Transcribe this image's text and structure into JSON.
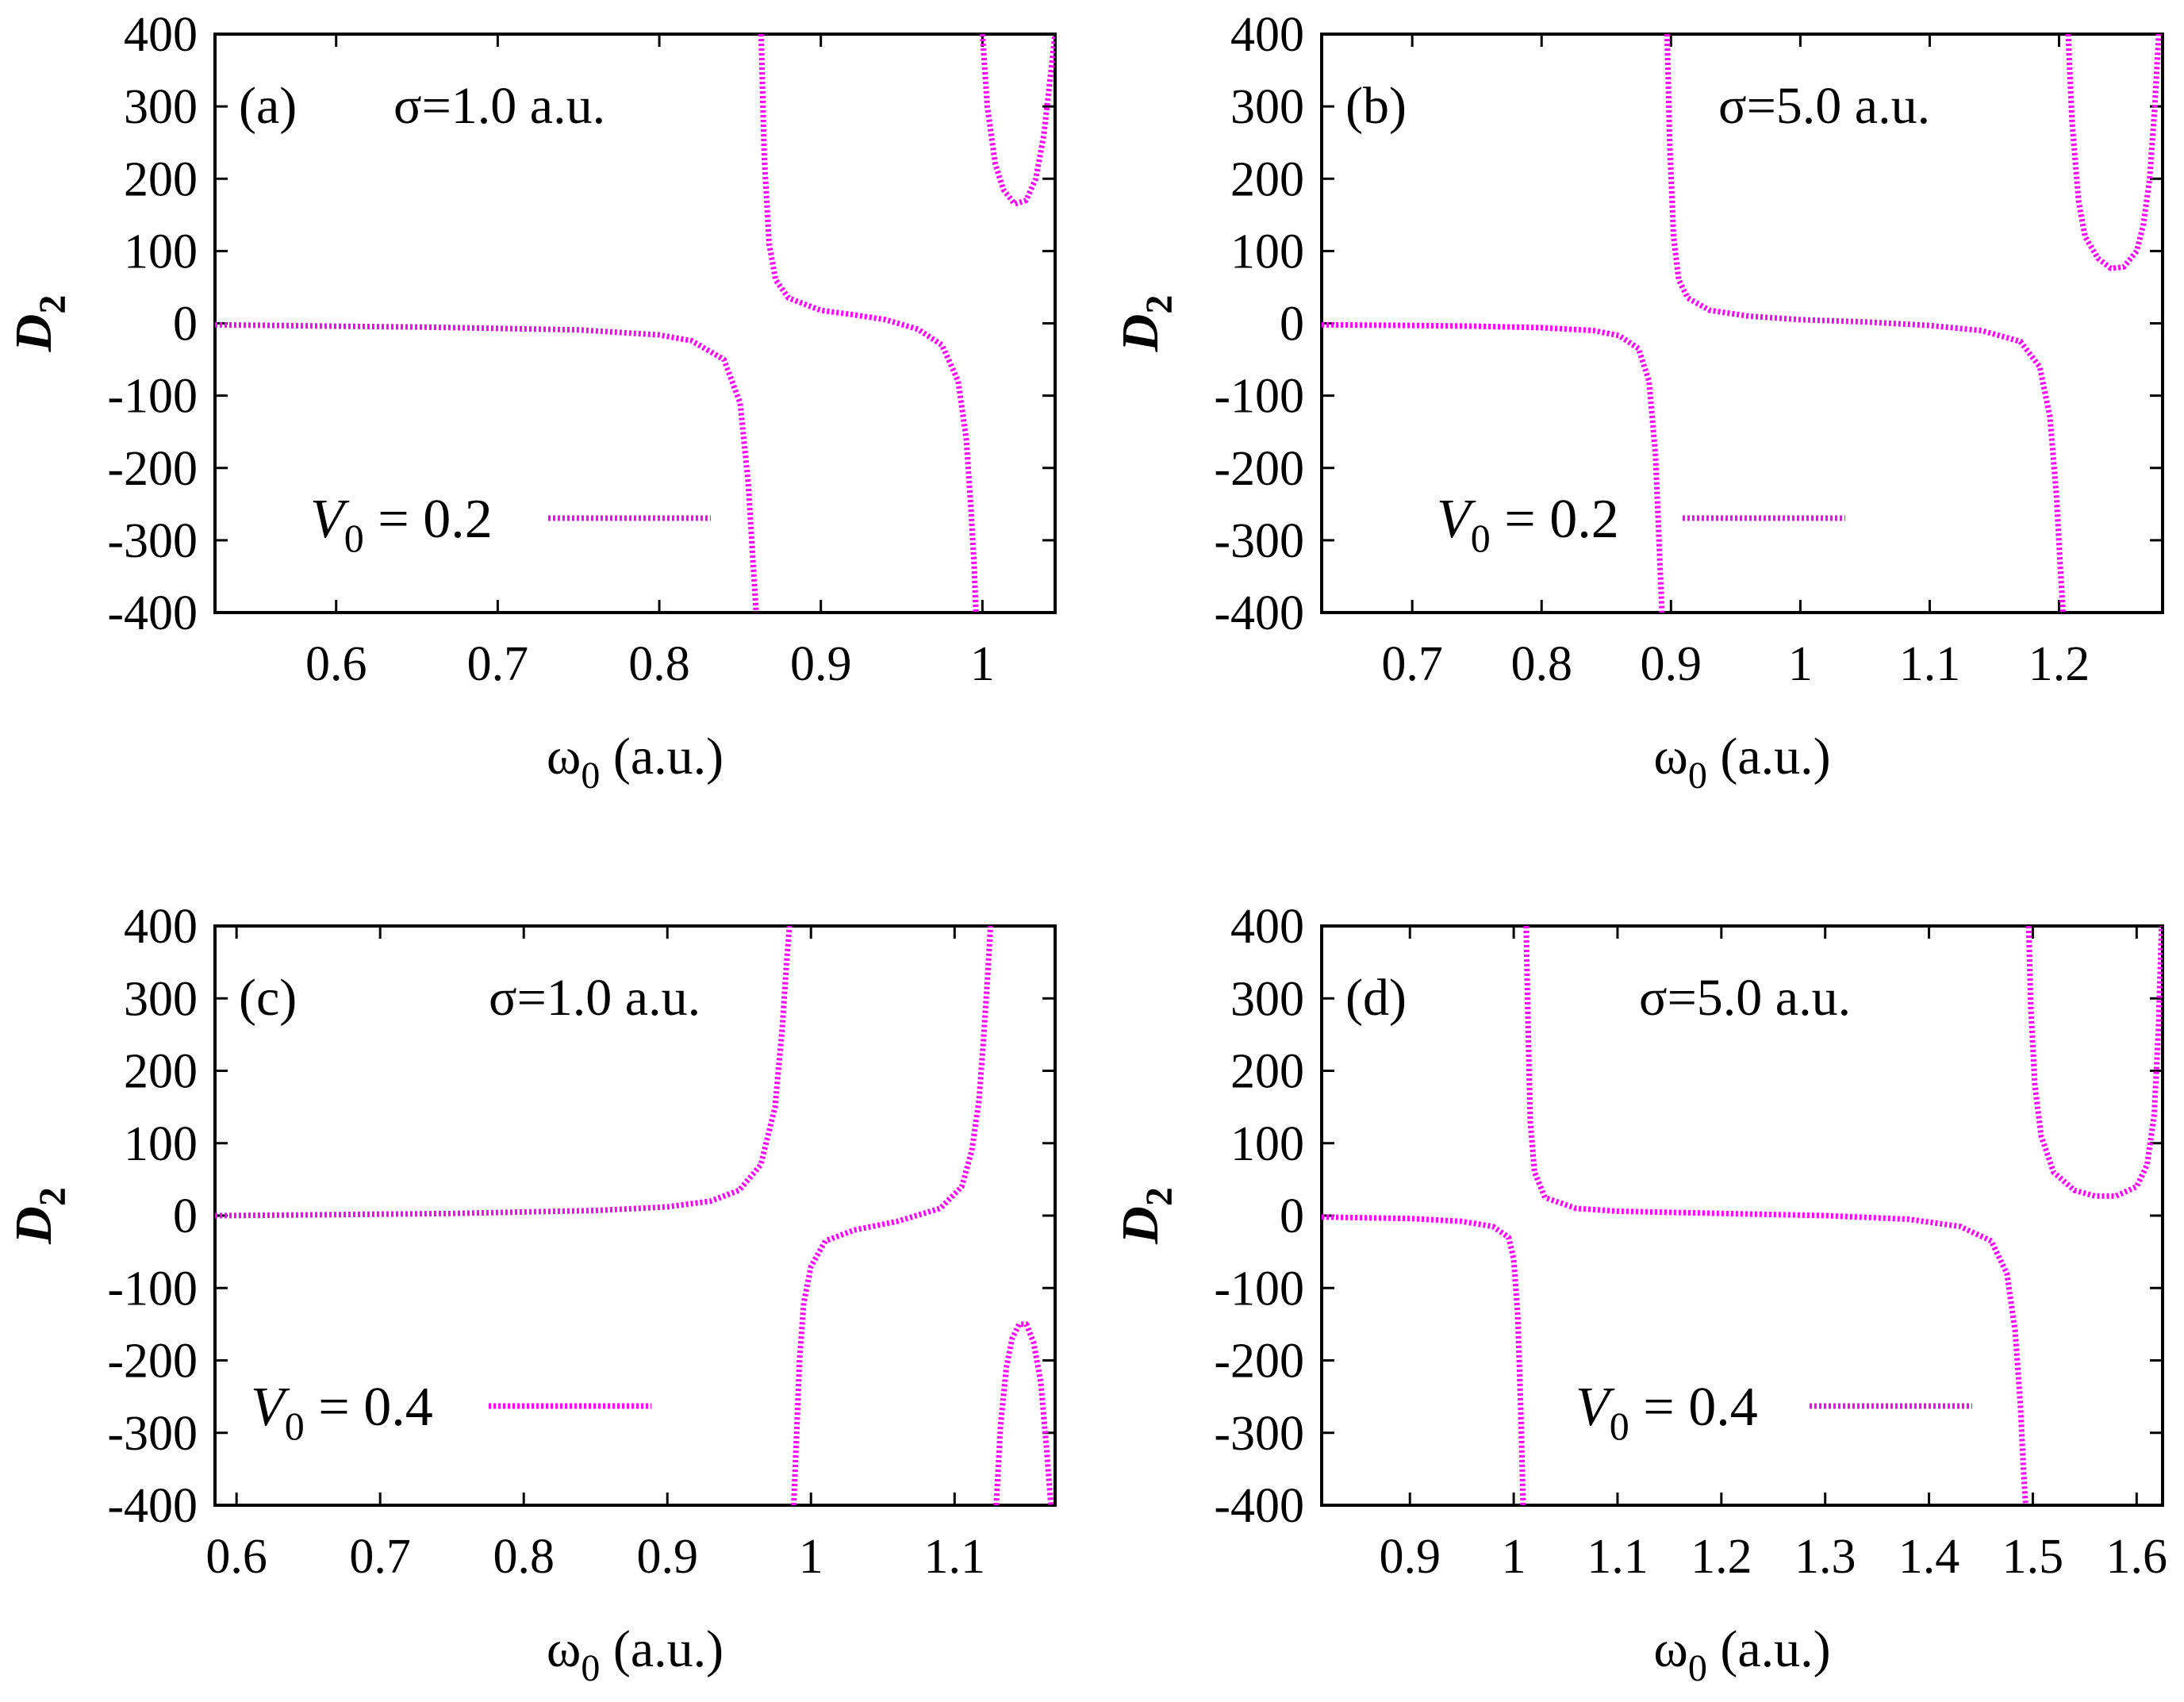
{
  "figure": {
    "ylabel": "D",
    "ylabel_sub": "2",
    "xlabel_symbol": "ω",
    "xlabel_sub": "0",
    "xlabel_unit": " (a.u.)",
    "legend_prefix": "V",
    "legend_sub": "0",
    "curve_color": "#ff00ff"
  },
  "chart_data": [
    {
      "type": "line",
      "panel": "(a)",
      "annotation": "σ=1.0 a.u.",
      "legend": " = 0.2",
      "xlim": [
        0.525,
        1.045
      ],
      "ylim": [
        -400,
        400
      ],
      "xticks": [
        0.6,
        0.7,
        0.8,
        0.9,
        1
      ],
      "xtick_labels": [
        "0.6",
        "0.7",
        "0.8",
        "0.9",
        "1"
      ],
      "yticks": [
        -400,
        -300,
        -200,
        -100,
        0,
        100,
        200,
        300,
        400
      ],
      "ytick_labels": [
        "-400",
        "-300",
        "-200",
        "-100",
        "0",
        "100",
        "200",
        "300",
        "400"
      ],
      "poles": [
        0.862,
        0.997
      ],
      "branches": [
        {
          "x": [
            0.525,
            0.6,
            0.65,
            0.7,
            0.75,
            0.8,
            0.82,
            0.84,
            0.85,
            0.855,
            0.858,
            0.86
          ],
          "y": [
            -2,
            -4,
            -5,
            -7,
            -9,
            -16,
            -24,
            -50,
            -110,
            -220,
            -330,
            -400
          ]
        },
        {
          "x": [
            0.863,
            0.865,
            0.868,
            0.872,
            0.88,
            0.9,
            0.92,
            0.94,
            0.96,
            0.975,
            0.985,
            0.99,
            0.993,
            0.995,
            0.996
          ],
          "y": [
            400,
            230,
            110,
            60,
            35,
            18,
            12,
            5,
            -8,
            -30,
            -80,
            -160,
            -260,
            -340,
            -400
          ]
        },
        {
          "x": [
            1.0,
            1.003,
            1.008,
            1.013,
            1.02,
            1.027,
            1.033,
            1.038,
            1.042,
            1.045
          ],
          "y": [
            400,
            300,
            220,
            185,
            165,
            170,
            200,
            260,
            340,
            400
          ]
        }
      ]
    },
    {
      "type": "line",
      "panel": "(b)",
      "annotation": "σ=5.0 a.u.",
      "legend": " = 0.2",
      "xlim": [
        0.63,
        1.28
      ],
      "ylim": [
        -400,
        400
      ],
      "xticks": [
        0.7,
        0.8,
        0.9,
        1,
        1.1,
        1.2
      ],
      "xtick_labels": [
        "0.7",
        "0.8",
        "0.9",
        "1",
        "1.1",
        "1.2"
      ],
      "yticks": [
        -400,
        -300,
        -200,
        -100,
        0,
        100,
        200,
        300,
        400
      ],
      "ytick_labels": [
        "-400",
        "-300",
        "-200",
        "-100",
        "0",
        "100",
        "200",
        "300",
        "400"
      ],
      "poles": [
        0.895,
        1.205
      ],
      "branches": [
        {
          "x": [
            0.63,
            0.7,
            0.75,
            0.8,
            0.84,
            0.86,
            0.875,
            0.883,
            0.888,
            0.891,
            0.893
          ],
          "y": [
            -2,
            -3,
            -4,
            -6,
            -10,
            -17,
            -35,
            -80,
            -180,
            -310,
            -400
          ]
        },
        {
          "x": [
            0.897,
            0.899,
            0.902,
            0.906,
            0.913,
            0.93,
            0.96,
            1.0,
            1.05,
            1.1,
            1.14,
            1.17,
            1.185,
            1.193,
            1.198,
            1.201,
            1.203
          ],
          "y": [
            400,
            250,
            120,
            60,
            35,
            18,
            10,
            5,
            2,
            -3,
            -10,
            -25,
            -60,
            -130,
            -240,
            -340,
            -400
          ]
        },
        {
          "x": [
            1.207,
            1.21,
            1.215,
            1.22,
            1.23,
            1.24,
            1.25,
            1.26,
            1.265,
            1.27,
            1.274,
            1.277
          ],
          "y": [
            400,
            280,
            170,
            120,
            90,
            76,
            78,
            100,
            135,
            200,
            300,
            400
          ]
        }
      ]
    },
    {
      "type": "line",
      "panel": "(c)",
      "annotation": "σ=1.0 a.u.",
      "legend": " = 0.4",
      "xlim": [
        0.585,
        1.17
      ],
      "ylim": [
        -400,
        400
      ],
      "xticks": [
        0.6,
        0.7,
        0.8,
        0.9,
        1,
        1.1
      ],
      "xtick_labels": [
        "0.6",
        "0.7",
        "0.8",
        "0.9",
        "1",
        "1.1"
      ],
      "yticks": [
        -400,
        -300,
        -200,
        -100,
        0,
        100,
        200,
        300,
        400
      ],
      "ytick_labels": [
        "-400",
        "-300",
        "-200",
        "-100",
        "0",
        "100",
        "200",
        "300",
        "400"
      ],
      "poles": [
        0.985,
        1.125
      ],
      "branches": [
        {
          "x": [
            0.585,
            0.65,
            0.7,
            0.75,
            0.8,
            0.85,
            0.9,
            0.93,
            0.95,
            0.965,
            0.975,
            0.98,
            0.983,
            0.985
          ],
          "y": [
            0,
            1,
            2,
            3,
            5,
            7,
            12,
            20,
            35,
            70,
            150,
            260,
            350,
            400
          ]
        },
        {
          "x": [
            0.988,
            0.99,
            0.992,
            0.995,
            1.0,
            1.01,
            1.03,
            1.06,
            1.09,
            1.105,
            1.112,
            1.117,
            1.12,
            1.123,
            1.125
          ],
          "y": [
            -400,
            -300,
            -200,
            -120,
            -70,
            -35,
            -20,
            -8,
            10,
            40,
            90,
            160,
            240,
            330,
            400
          ]
        },
        {
          "x": [
            1.129,
            1.132,
            1.136,
            1.14,
            1.145,
            1.15,
            1.155,
            1.16,
            1.164,
            1.167
          ],
          "y": [
            -400,
            -290,
            -210,
            -170,
            -150,
            -150,
            -175,
            -230,
            -320,
            -400
          ]
        }
      ]
    },
    {
      "type": "line",
      "panel": "(d)",
      "annotation": "σ=5.0 a.u.",
      "legend": " = 0.4",
      "xlim": [
        0.815,
        1.625
      ],
      "ylim": [
        -400,
        400
      ],
      "xticks": [
        0.9,
        1,
        1.1,
        1.2,
        1.3,
        1.4,
        1.5,
        1.6
      ],
      "xtick_labels": [
        "0.9",
        "1",
        "1.1",
        "1.2",
        "1.3",
        "1.4",
        "1.5",
        "1.6"
      ],
      "yticks": [
        -400,
        -300,
        -200,
        -100,
        0,
        100,
        200,
        300,
        400
      ],
      "ytick_labels": [
        "-400",
        "-300",
        "-200",
        "-100",
        "0",
        "100",
        "200",
        "300",
        "400"
      ],
      "poles": [
        1.01,
        1.495
      ],
      "branches": [
        {
          "x": [
            0.815,
            0.9,
            0.95,
            0.98,
            0.995,
            1.0,
            1.004,
            1.007,
            1.009
          ],
          "y": [
            -2,
            -4,
            -8,
            -15,
            -30,
            -60,
            -140,
            -280,
            -400
          ]
        },
        {
          "x": [
            1.012,
            1.014,
            1.016,
            1.02,
            1.03,
            1.06,
            1.1,
            1.2,
            1.3,
            1.38,
            1.43,
            1.46,
            1.475,
            1.483,
            1.488,
            1.491,
            1.493
          ],
          "y": [
            400,
            250,
            130,
            60,
            25,
            10,
            6,
            3,
            0,
            -5,
            -15,
            -35,
            -80,
            -160,
            -260,
            -350,
            -400
          ]
        },
        {
          "x": [
            1.496,
            1.498,
            1.502,
            1.508,
            1.52,
            1.54,
            1.56,
            1.58,
            1.6,
            1.61,
            1.617,
            1.621,
            1.624
          ],
          "y": [
            400,
            290,
            180,
            110,
            60,
            35,
            27,
            27,
            40,
            70,
            140,
            260,
            400
          ]
        }
      ]
    }
  ]
}
